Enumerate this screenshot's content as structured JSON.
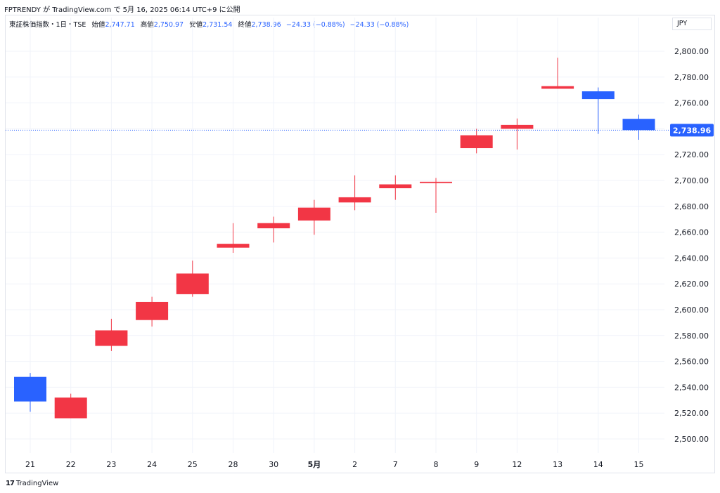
{
  "header": {
    "text": "FPTRENDY が TradingView.com で 5月 16, 2025 06:14 UTC+9 に公開"
  },
  "legend": {
    "symbol": "東証株価指数・1日・TSE",
    "open_label": "始値",
    "open": "2,747.71",
    "high_label": "高値",
    "high": "2,750.97",
    "low_label": "安値",
    "low": "2,731.54",
    "close_label": "終値",
    "close": "2,738.96",
    "change1": "−24.33 (−0.88%)",
    "change2": "−24.33 (−0.88%)"
  },
  "currency": "JPY",
  "last_price_label": "2,738.96",
  "footer": {
    "logo": "17",
    "brand": "TradingView"
  },
  "colors": {
    "up": "#f23645",
    "down": "#2962ff",
    "grid": "#f0f3fa",
    "text": "#131722"
  },
  "chart_data": {
    "type": "candlestick",
    "title": "",
    "xlabel": "",
    "ylabel": "",
    "ylim": [
      2490,
      2810
    ],
    "y_ticks": [
      "2,500.00",
      "2,520.00",
      "2,540.00",
      "2,560.00",
      "2,580.00",
      "2,600.00",
      "2,620.00",
      "2,640.00",
      "2,660.00",
      "2,680.00",
      "2,700.00",
      "2,720.00",
      "2,740.00",
      "2,760.00",
      "2,780.00",
      "2,800.00"
    ],
    "y_tick_values": [
      2500,
      2520,
      2540,
      2560,
      2580,
      2600,
      2620,
      2640,
      2660,
      2680,
      2700,
      2720,
      2740,
      2760,
      2780,
      2800
    ],
    "categories": [
      "21",
      "22",
      "23",
      "24",
      "25",
      "28",
      "30",
      "5月",
      "2",
      "7",
      "8",
      "9",
      "12",
      "13",
      "14",
      "15"
    ],
    "bold_categories": [
      "5月"
    ],
    "ohlc": [
      {
        "open": 2548,
        "high": 2551,
        "low": 2521,
        "close": 2529
      },
      {
        "open": 2516,
        "high": 2535,
        "low": 2516,
        "close": 2532
      },
      {
        "open": 2572,
        "high": 2593,
        "low": 2568,
        "close": 2584
      },
      {
        "open": 2592,
        "high": 2610,
        "low": 2587,
        "close": 2606
      },
      {
        "open": 2612,
        "high": 2638,
        "low": 2610,
        "close": 2628
      },
      {
        "open": 2648,
        "high": 2667,
        "low": 2644,
        "close": 2651
      },
      {
        "open": 2663,
        "high": 2672,
        "low": 2652,
        "close": 2667
      },
      {
        "open": 2669,
        "high": 2685,
        "low": 2658,
        "close": 2679
      },
      {
        "open": 2683,
        "high": 2704,
        "low": 2677,
        "close": 2687
      },
      {
        "open": 2694,
        "high": 2704,
        "low": 2685,
        "close": 2697
      },
      {
        "open": 2698,
        "high": 2702,
        "low": 2675,
        "close": 2699
      },
      {
        "open": 2725,
        "high": 2740,
        "low": 2721,
        "close": 2735
      },
      {
        "open": 2740,
        "high": 2748,
        "low": 2724,
        "close": 2743
      },
      {
        "open": 2771,
        "high": 2795,
        "low": 2771,
        "close": 2773
      },
      {
        "open": 2769,
        "high": 2772,
        "low": 2736,
        "close": 2763
      },
      {
        "open": 2747.71,
        "high": 2750.97,
        "low": 2731.54,
        "close": 2738.96
      }
    ],
    "last_price": 2738.96,
    "grid": true
  }
}
